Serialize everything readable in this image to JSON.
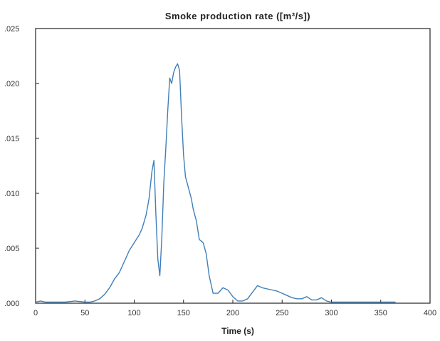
{
  "chart_data": {
    "type": "line",
    "title": "Smoke production rate ([m³/s])",
    "xlabel": "Time (s)",
    "ylabel": "",
    "xlim": [
      0,
      400
    ],
    "ylim": [
      0,
      0.025
    ],
    "xticks": [
      0,
      50,
      100,
      150,
      200,
      250,
      300,
      350,
      400
    ],
    "xtick_labels": [
      "0",
      "50",
      "100",
      "150",
      "200",
      "250",
      "300",
      "350",
      "400"
    ],
    "yticks": [
      0,
      0.005,
      0.01,
      0.015,
      0.02,
      0.025
    ],
    "ytick_labels": [
      ".000",
      ".005",
      ".010",
      ".015",
      ".020",
      ".025"
    ],
    "grid": false,
    "legend": "none",
    "colors": {
      "line": "#3f7fb8",
      "axis": "#222222"
    },
    "series": [
      {
        "x": [
          0,
          5,
          10,
          20,
          30,
          40,
          50,
          55,
          60,
          65,
          70,
          75,
          80,
          85,
          90,
          95,
          100,
          105,
          108,
          112,
          115,
          118,
          120,
          122,
          124,
          126,
          128,
          130,
          132,
          134,
          136,
          138,
          140,
          142,
          144,
          146,
          148,
          150,
          152,
          155,
          158,
          160,
          163,
          166,
          170,
          173,
          176,
          180,
          185,
          190,
          195,
          200,
          205,
          210,
          215,
          220,
          225,
          230,
          235,
          240,
          245,
          250,
          255,
          260,
          265,
          270,
          275,
          280,
          285,
          290,
          295,
          300,
          310,
          320,
          330,
          340,
          350,
          360,
          365
        ],
        "y": [
          0.0001,
          0.0002,
          0.0001,
          0.0001,
          0.0001,
          0.0002,
          0.0001,
          0.0001,
          0.0002,
          0.0004,
          0.0008,
          0.0014,
          0.0022,
          0.0028,
          0.0038,
          0.0048,
          0.0055,
          0.0062,
          0.0068,
          0.008,
          0.0095,
          0.012,
          0.013,
          0.008,
          0.004,
          0.0025,
          0.006,
          0.011,
          0.014,
          0.0175,
          0.0205,
          0.02,
          0.021,
          0.0215,
          0.0218,
          0.0212,
          0.017,
          0.0135,
          0.0115,
          0.0105,
          0.0095,
          0.0085,
          0.0075,
          0.0058,
          0.0055,
          0.0045,
          0.0025,
          0.0009,
          0.0009,
          0.0014,
          0.0012,
          0.0006,
          0.0002,
          0.0002,
          0.0004,
          0.001,
          0.0016,
          0.0014,
          0.0013,
          0.0012,
          0.0011,
          0.0009,
          0.0007,
          0.0005,
          0.0004,
          0.0004,
          0.0006,
          0.0003,
          0.0003,
          0.0005,
          0.0002,
          0.0001,
          0.0001,
          0.0001,
          0.0001,
          0.0001,
          0.0001,
          0.0001,
          0.0001
        ]
      }
    ]
  }
}
